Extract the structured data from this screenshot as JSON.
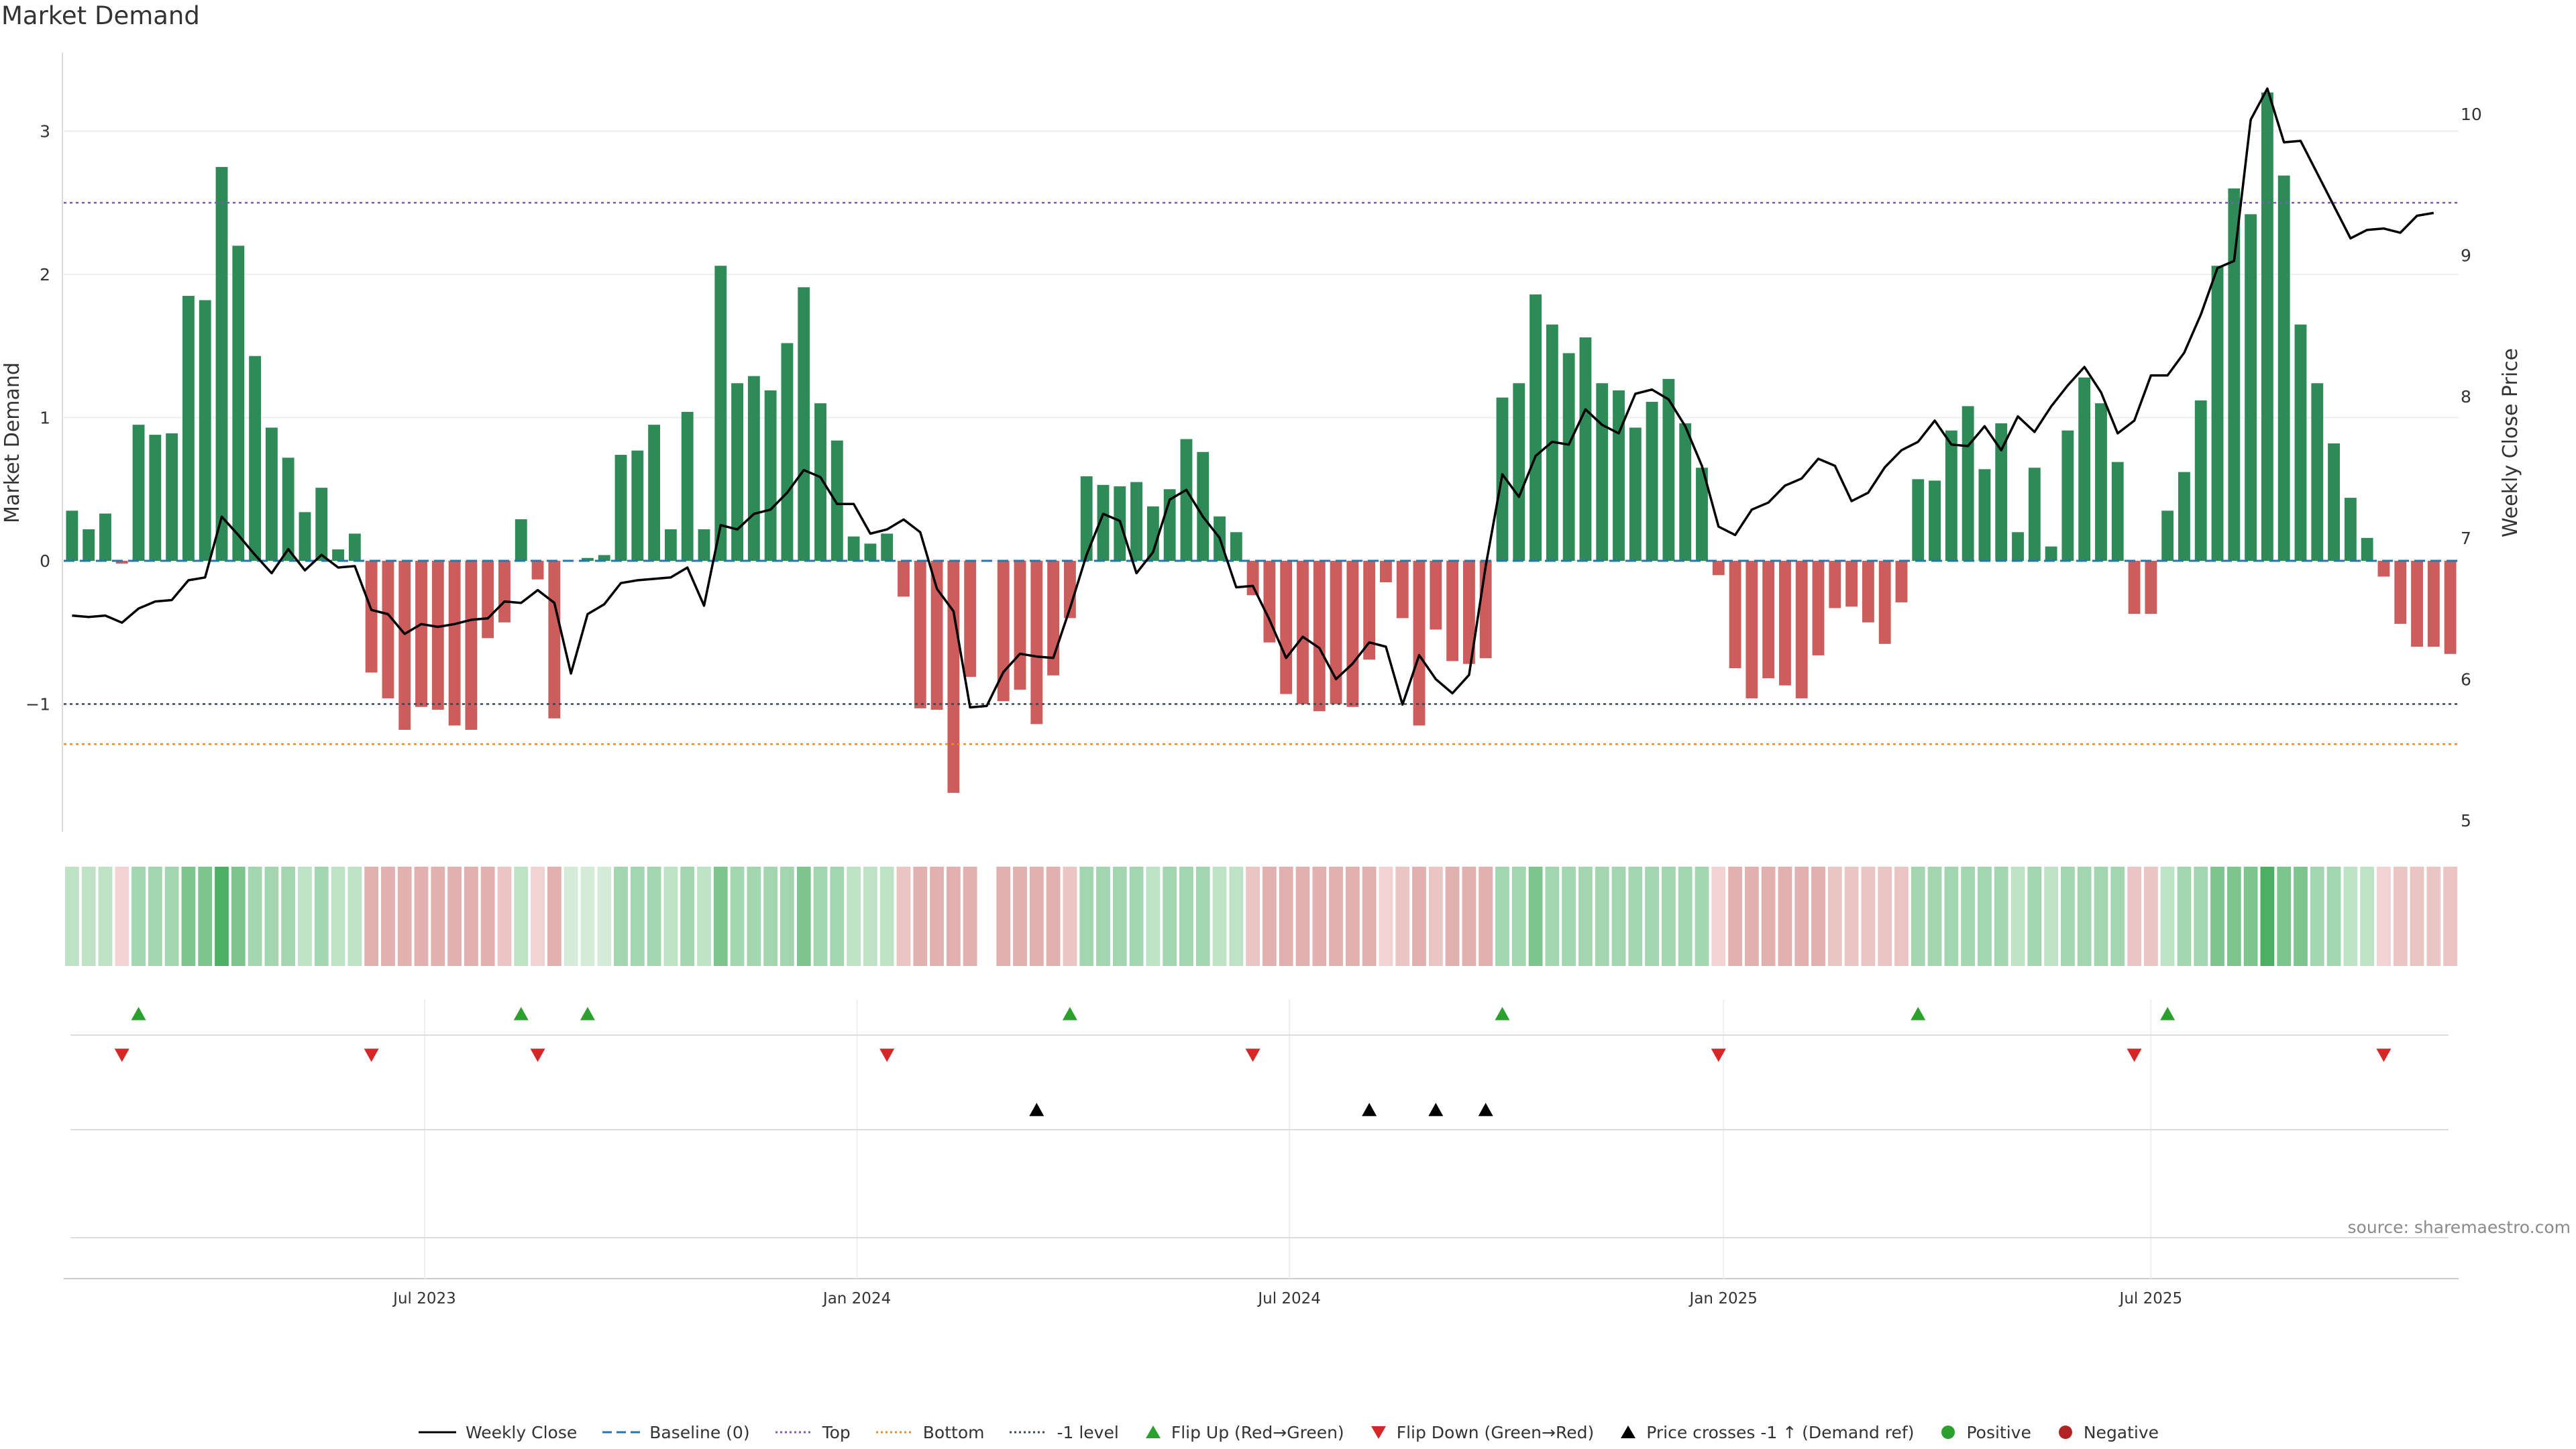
{
  "title": "Market Demand",
  "source": "source: sharemaestro.com",
  "chart_data": {
    "type": "bar",
    "y_left": {
      "label": "Market Demand",
      "ticks": [
        3,
        2,
        1,
        0,
        -1
      ],
      "tick_labels": [
        "3",
        "2",
        "1",
        "0",
        "−1"
      ]
    },
    "y_right": {
      "label": "Weekly Close Price",
      "ticks": [
        10,
        9,
        8,
        7,
        6,
        5
      ],
      "tick_labels": [
        "10",
        "9",
        "8",
        "7",
        "6",
        "5"
      ]
    },
    "x_ticks": [
      "Jul 2023",
      "Jan 2024",
      "Jul 2024",
      "Jan 2025",
      "Jul 2025"
    ],
    "reference_lines": {
      "top": 2.5,
      "bottom": -1.28,
      "minus_one": -1.0,
      "baseline": 0
    },
    "demand": [
      0.35,
      0.22,
      0.33,
      -0.02,
      0.95,
      0.88,
      0.89,
      1.85,
      1.82,
      2.75,
      2.2,
      1.43,
      0.93,
      0.72,
      0.34,
      0.51,
      0.08,
      0.19,
      -0.78,
      -0.96,
      -1.18,
      -1.02,
      -1.04,
      -1.15,
      -1.18,
      -0.54,
      -0.43,
      0.29,
      -0.13,
      -1.1,
      0.0,
      0.02,
      0.04,
      0.74,
      0.77,
      0.95,
      0.22,
      1.04,
      0.22,
      2.06,
      1.24,
      1.29,
      1.19,
      1.52,
      1.91,
      1.1,
      0.84,
      0.17,
      0.12,
      0.19,
      -0.25,
      -1.03,
      -1.04,
      -1.62,
      -0.81,
      0.0,
      -0.98,
      -0.9,
      -1.14,
      -0.8,
      -0.4,
      0.59,
      0.53,
      0.52,
      0.55,
      0.38,
      0.5,
      0.85,
      0.76,
      0.31,
      0.2,
      -0.24,
      -0.57,
      -0.93,
      -1.0,
      -1.05,
      -1.0,
      -1.02,
      -0.69,
      -0.15,
      -0.4,
      -1.15,
      -0.48,
      -0.7,
      -0.72,
      -0.68,
      1.14,
      1.24,
      1.86,
      1.65,
      1.45,
      1.56,
      1.24,
      1.19,
      0.93,
      1.11,
      1.27,
      0.96,
      0.65,
      -0.1,
      -0.75,
      -0.96,
      -0.82,
      -0.87,
      -0.96,
      -0.66,
      -0.33,
      -0.32,
      -0.43,
      -0.58,
      -0.29,
      0.57,
      0.56,
      0.91,
      1.08,
      0.64,
      0.96,
      0.2,
      0.65,
      0.1,
      0.91,
      1.28,
      1.1,
      0.69,
      -0.37,
      -0.37,
      0.35,
      0.62,
      1.12,
      2.06,
      2.6,
      2.42,
      3.27,
      2.69,
      1.65,
      1.24,
      0.82,
      0.44,
      0.16,
      -0.11,
      -0.44,
      -0.6,
      -0.6,
      -0.65
    ],
    "weekly_close": [
      6.45,
      6.44,
      6.45,
      6.4,
      6.5,
      6.55,
      6.56,
      6.7,
      6.72,
      7.15,
      7.02,
      6.88,
      6.75,
      6.92,
      6.77,
      6.88,
      6.79,
      6.8,
      6.49,
      6.46,
      6.32,
      6.39,
      6.37,
      6.39,
      6.42,
      6.43,
      6.55,
      6.54,
      6.63,
      6.54,
      6.04,
      6.46,
      6.53,
      6.68,
      6.7,
      6.71,
      6.72,
      6.79,
      6.52,
      7.09,
      7.06,
      7.17,
      7.2,
      7.32,
      7.48,
      7.43,
      7.24,
      7.24,
      7.03,
      7.06,
      7.13,
      7.04,
      6.64,
      6.48,
      5.8,
      5.81,
      6.05,
      6.18,
      6.16,
      6.15,
      6.5,
      6.88,
      7.17,
      7.12,
      6.75,
      6.9,
      7.27,
      7.34,
      7.15,
      7.0,
      6.65,
      6.66,
      6.42,
      6.15,
      6.3,
      6.22,
      6.0,
      6.11,
      6.26,
      6.23,
      5.82,
      6.17,
      6.0,
      5.9,
      6.03,
      6.8,
      7.45,
      7.29,
      7.58,
      7.68,
      7.66,
      7.91,
      7.8,
      7.74,
      8.02,
      8.05,
      7.98,
      7.79,
      7.51,
      7.08,
      7.02,
      7.2,
      7.25,
      7.37,
      7.42,
      7.56,
      7.51,
      7.26,
      7.32,
      7.5,
      7.62,
      7.68,
      7.83,
      7.66,
      7.65,
      7.79,
      7.62,
      7.86,
      7.75,
      7.93,
      8.08,
      8.21,
      8.03,
      7.74,
      7.83,
      8.15,
      8.15,
      8.31,
      8.58,
      8.91,
      8.96,
      9.96,
      10.18,
      9.8,
      9.81,
      9.58,
      9.35,
      9.12,
      9.18,
      9.19,
      9.16,
      9.28,
      9.3
    ],
    "intensity_strip": [
      1,
      1,
      1,
      0,
      2,
      2,
      2,
      3,
      3,
      4,
      3,
      2,
      2,
      2,
      1,
      2,
      1,
      1,
      2,
      2,
      2,
      2,
      2,
      2,
      2,
      2,
      1,
      1,
      0,
      2,
      0,
      0,
      0,
      2,
      2,
      2,
      1,
      2,
      1,
      3,
      2,
      2,
      2,
      2,
      3,
      2,
      2,
      1,
      1,
      1,
      1,
      2,
      2,
      2,
      2,
      -1,
      2,
      2,
      2,
      2,
      1,
      2,
      2,
      2,
      2,
      1,
      2,
      2,
      2,
      1,
      1,
      1,
      2,
      2,
      2,
      2,
      2,
      2,
      2,
      0,
      1,
      2,
      1,
      2,
      2,
      2,
      2,
      2,
      3,
      2,
      2,
      2,
      2,
      2,
      2,
      2,
      2,
      2,
      2,
      0,
      2,
      2,
      2,
      2,
      2,
      2,
      1,
      1,
      1,
      1,
      1,
      2,
      2,
      2,
      2,
      2,
      2,
      1,
      2,
      1,
      2,
      2,
      2,
      2,
      1,
      1,
      1,
      2,
      2,
      3,
      3,
      3,
      4,
      3,
      3,
      2,
      2,
      1,
      1,
      0,
      1,
      1,
      1,
      1
    ],
    "flip_up": [
      4,
      27,
      31,
      60,
      86,
      111,
      126
    ],
    "flip_down": [
      3,
      18,
      28,
      49,
      71,
      99,
      124,
      139
    ],
    "price_cross": [
      58,
      78,
      82,
      85
    ],
    "legend": [
      {
        "label": "Weekly Close",
        "kind": "line",
        "color": "#000000",
        "dash": "none"
      },
      {
        "label": "Baseline (0)",
        "kind": "line",
        "color": "#1f77b4",
        "dash": "14 7"
      },
      {
        "label": "Top",
        "kind": "line",
        "color": "#7e57c2",
        "dash": "3 4"
      },
      {
        "label": "Bottom",
        "kind": "line",
        "color": "#ef8a1d",
        "dash": "3 4"
      },
      {
        "label": "-1 level",
        "kind": "line",
        "color": "#37474f",
        "dash": "3 4"
      },
      {
        "label": "Flip Up (Red→Green)",
        "kind": "tri-up",
        "color": "#2ca02c"
      },
      {
        "label": "Flip Down (Green→Red)",
        "kind": "tri-down",
        "color": "#d62728"
      },
      {
        "label": "Price crosses -1 ↑ (Demand ref)",
        "kind": "tri-up",
        "color": "#000000"
      },
      {
        "label": "Positive",
        "kind": "dot",
        "color": "#2ca02c"
      },
      {
        "label": "Negative",
        "kind": "dot",
        "color": "#b22222"
      }
    ]
  }
}
